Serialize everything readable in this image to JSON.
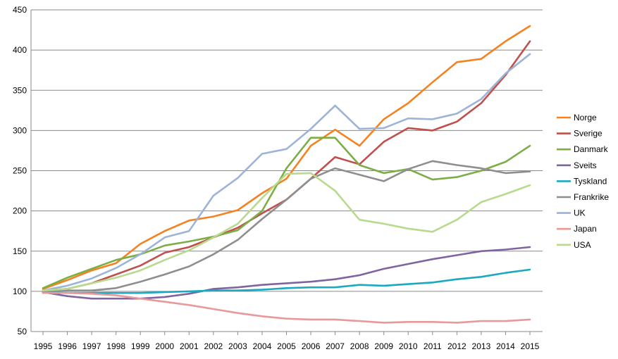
{
  "chart_data": {
    "type": "line",
    "title": "",
    "xlabel": "",
    "ylabel": "",
    "x": [
      1995,
      1996,
      1997,
      1998,
      1999,
      2000,
      2001,
      2002,
      2003,
      2004,
      2005,
      2006,
      2007,
      2008,
      2009,
      2010,
      2011,
      2012,
      2013,
      2014,
      2015
    ],
    "ylim": [
      50,
      450
    ],
    "yticks": [
      50,
      100,
      150,
      200,
      250,
      300,
      350,
      400,
      450
    ],
    "grid": true,
    "legend_position": "right",
    "series": [
      {
        "name": "Norge",
        "color": "#F58220",
        "values": [
          103,
          114,
          126,
          135,
          159,
          175,
          188,
          193,
          201,
          222,
          240,
          281,
          301,
          281,
          314,
          334,
          360,
          385,
          389,
          411,
          430
        ]
      },
      {
        "name": "Sverige",
        "color": "#C0504D",
        "values": [
          101,
          103,
          110,
          121,
          132,
          148,
          155,
          167,
          179,
          197,
          214,
          240,
          267,
          258,
          286,
          303,
          300,
          311,
          334,
          369,
          411
        ]
      },
      {
        "name": "Danmark",
        "color": "#7DAE45",
        "values": [
          104,
          117,
          128,
          139,
          146,
          157,
          162,
          168,
          176,
          200,
          253,
          291,
          291,
          257,
          247,
          252,
          239,
          242,
          250,
          261,
          281
        ]
      },
      {
        "name": "Sveits",
        "color": "#8064A2",
        "values": [
          99,
          94,
          91,
          91,
          91,
          93,
          97,
          103,
          105,
          108,
          110,
          112,
          115,
          120,
          128,
          134,
          140,
          145,
          150,
          152,
          155
        ]
      },
      {
        "name": "Tyskland",
        "color": "#1AA9C0",
        "values": [
          99,
          98,
          98,
          98,
          98,
          99,
          100,
          101,
          101,
          102,
          104,
          105,
          105,
          108,
          107,
          109,
          111,
          115,
          118,
          123,
          127
        ]
      },
      {
        "name": "Frankrike",
        "color": "#8E8E8E",
        "values": [
          100,
          101,
          101,
          104,
          112,
          121,
          131,
          146,
          164,
          190,
          214,
          240,
          253,
          245,
          237,
          252,
          262,
          257,
          253,
          247,
          249
        ]
      },
      {
        "name": "UK",
        "color": "#9DB4D8",
        "values": [
          101,
          107,
          116,
          129,
          146,
          167,
          175,
          219,
          241,
          271,
          277,
          302,
          331,
          302,
          303,
          315,
          314,
          321,
          339,
          371,
          395
        ]
      },
      {
        "name": "Japan",
        "color": "#E8999A",
        "values": [
          98,
          98,
          97,
          95,
          91,
          87,
          83,
          78,
          73,
          69,
          66,
          65,
          65,
          63,
          61,
          62,
          62,
          61,
          63,
          63,
          65
        ]
      },
      {
        "name": "USA",
        "color": "#B9D98E",
        "values": [
          101,
          103,
          110,
          117,
          126,
          139,
          151,
          167,
          184,
          216,
          246,
          247,
          225,
          189,
          184,
          178,
          174,
          189,
          211,
          221,
          232
        ]
      }
    ]
  }
}
